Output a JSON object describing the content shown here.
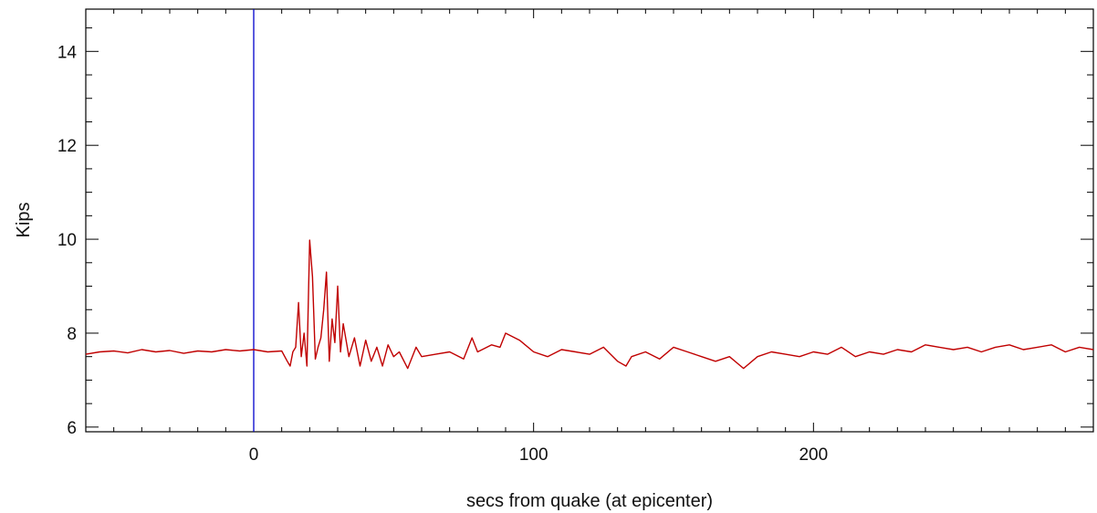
{
  "chart_data": {
    "type": "line",
    "xlabel": "secs from quake (at epicenter)",
    "ylabel": "Kips",
    "xlim": [
      -60,
      300
    ],
    "ylim": [
      5.9,
      14.9
    ],
    "xticks": [
      0,
      100,
      200
    ],
    "yticks": [
      6,
      8,
      10,
      12,
      14
    ],
    "grid": false,
    "markers": [
      {
        "x": 0,
        "color": "#0000cc"
      }
    ],
    "series": [
      {
        "color": "#c00000",
        "x": [
          -60,
          -55,
          -50,
          -45,
          -40,
          -35,
          -30,
          -25,
          -20,
          -15,
          -10,
          -5,
          0,
          5,
          10,
          12,
          13,
          14,
          15,
          16,
          17,
          18,
          19,
          20,
          21,
          22,
          23,
          24,
          25,
          26,
          27,
          28,
          29,
          30,
          31,
          32,
          34,
          36,
          38,
          40,
          42,
          44,
          46,
          48,
          50,
          52,
          55,
          58,
          60,
          65,
          70,
          75,
          78,
          80,
          85,
          88,
          90,
          95,
          100,
          105,
          110,
          115,
          120,
          125,
          130,
          133,
          135,
          140,
          145,
          150,
          155,
          160,
          165,
          170,
          175,
          180,
          185,
          190,
          195,
          200,
          205,
          210,
          215,
          220,
          225,
          230,
          235,
          240,
          245,
          250,
          255,
          260,
          265,
          270,
          275,
          280,
          285,
          290,
          295,
          300
        ],
        "values": [
          7.55,
          7.6,
          7.62,
          7.58,
          7.65,
          7.6,
          7.63,
          7.57,
          7.62,
          7.6,
          7.65,
          7.62,
          7.65,
          7.6,
          7.62,
          7.4,
          7.3,
          7.6,
          7.7,
          8.65,
          7.5,
          8.0,
          7.3,
          9.98,
          9.2,
          7.45,
          7.7,
          7.9,
          8.5,
          9.3,
          7.4,
          8.3,
          7.8,
          9.0,
          7.6,
          8.2,
          7.5,
          7.9,
          7.3,
          7.85,
          7.4,
          7.7,
          7.3,
          7.75,
          7.5,
          7.6,
          7.25,
          7.7,
          7.5,
          7.55,
          7.6,
          7.45,
          7.9,
          7.6,
          7.75,
          7.7,
          8.0,
          7.85,
          7.6,
          7.5,
          7.65,
          7.6,
          7.55,
          7.7,
          7.4,
          7.3,
          7.5,
          7.6,
          7.45,
          7.7,
          7.6,
          7.5,
          7.4,
          7.5,
          7.25,
          7.5,
          7.6,
          7.55,
          7.5,
          7.6,
          7.55,
          7.7,
          7.5,
          7.6,
          7.55,
          7.65,
          7.6,
          7.75,
          7.7,
          7.65,
          7.7,
          7.6,
          7.7,
          7.75,
          7.65,
          7.7,
          7.75,
          7.6,
          7.7,
          7.65
        ]
      }
    ]
  }
}
